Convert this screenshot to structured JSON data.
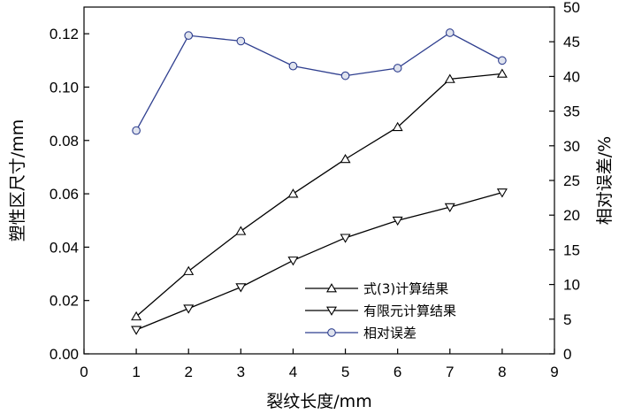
{
  "chart_data": {
    "type": "line",
    "x": [
      1,
      2,
      3,
      4,
      5,
      6,
      7,
      8
    ],
    "xlabel": "裂纹长度/mm",
    "ylabel": "塑性区尺寸/mm",
    "y2label": "相对误差/%",
    "xlim": [
      0,
      9
    ],
    "ylim": [
      0,
      0.13
    ],
    "y2lim": [
      0,
      50
    ],
    "xticks": [
      "0",
      "1",
      "2",
      "3",
      "4",
      "5",
      "6",
      "7",
      "8",
      "9"
    ],
    "yticks": [
      "0.00",
      "0.02",
      "0.04",
      "0.06",
      "0.08",
      "0.10",
      "0.12"
    ],
    "y2ticks": [
      "0",
      "5",
      "10",
      "15",
      "20",
      "25",
      "30",
      "35",
      "40",
      "45",
      "50"
    ],
    "grid": false,
    "legend_position": "bottom-right",
    "series": [
      {
        "name": "式(3)计算结果",
        "axis": "left",
        "marker": "triangle-up",
        "color": "#000000",
        "values": [
          0.014,
          0.031,
          0.046,
          0.06,
          0.073,
          0.085,
          0.103,
          0.105
        ]
      },
      {
        "name": "有限元计算结果",
        "axis": "left",
        "marker": "triangle-down",
        "color": "#000000",
        "values": [
          0.009,
          0.017,
          0.025,
          0.035,
          0.0435,
          0.05,
          0.055,
          0.0605
        ]
      },
      {
        "name": "相对误差",
        "axis": "right",
        "marker": "circle",
        "color": "#2f3f8f",
        "values": [
          32.2,
          45.9,
          45.1,
          41.5,
          40.1,
          41.2,
          46.3,
          42.3
        ]
      }
    ]
  }
}
